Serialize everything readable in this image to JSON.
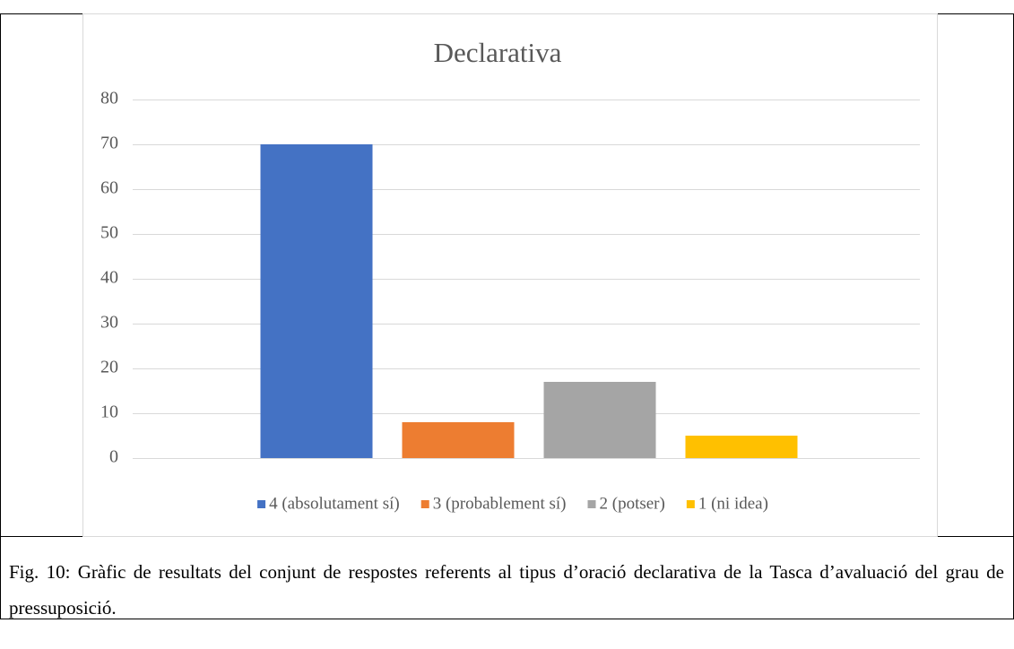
{
  "chart_data": {
    "type": "bar",
    "title": "Declarativa",
    "categories": [
      null
    ],
    "series": [
      {
        "name": "4 (absolutament sí)",
        "color": "#4472c4",
        "values": [
          70
        ]
      },
      {
        "name": "3 (probablement sí)",
        "color": "#ed7d31",
        "values": [
          8
        ]
      },
      {
        "name": "2 (potser)",
        "color": "#a5a5a5",
        "values": [
          17
        ]
      },
      {
        "name": "1 (ni idea)",
        "color": "#ffc000",
        "values": [
          5
        ]
      }
    ],
    "ylim": [
      0,
      80
    ],
    "yticks": [
      0,
      10,
      20,
      30,
      40,
      50,
      60,
      70,
      80
    ],
    "grid": true,
    "legend": "bottom"
  },
  "caption": "Fig. 10: Gràfic de resultats del conjunt de respostes referents al tipus d’oració declarativa de la Tasca d’avaluació del grau de pressuposició."
}
